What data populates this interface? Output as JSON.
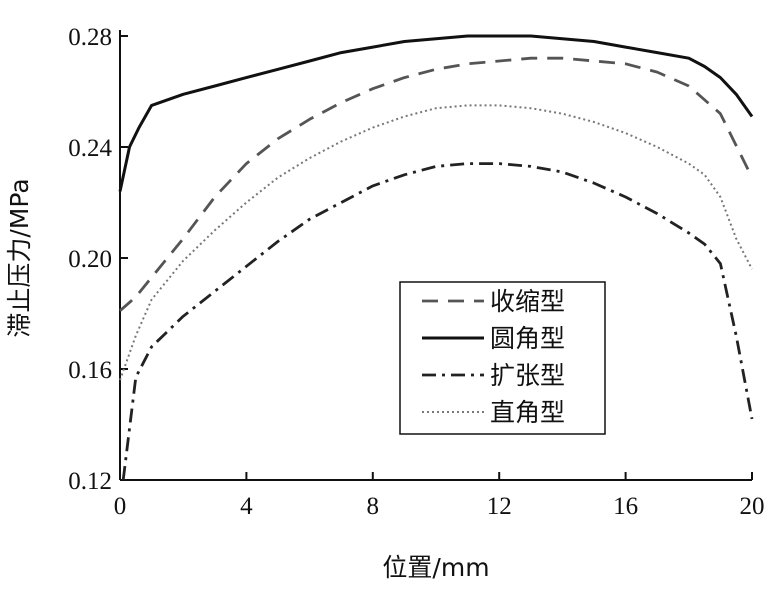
{
  "chart_data": {
    "type": "line",
    "xlabel": "位置/mm",
    "ylabel": "滞止压力/MPa",
    "xlim": [
      0,
      20
    ],
    "ylim": [
      0.12,
      0.28
    ],
    "xticks": [
      0,
      4,
      8,
      12,
      16,
      20
    ],
    "yticks": [
      0.12,
      0.16,
      0.2,
      0.24,
      0.28
    ],
    "xtick_labels": [
      "0",
      "4",
      "8",
      "12",
      "16",
      "20"
    ],
    "ytick_labels": [
      "0.12",
      "0.16",
      "0.20",
      "0.24",
      "0.28"
    ],
    "grid": false,
    "legend_position": "lower-right",
    "series": [
      {
        "name": "收缩型",
        "style": "dashed",
        "color": "#555555",
        "x": [
          0,
          0.5,
          1,
          2,
          3,
          4,
          5,
          6,
          7,
          8,
          9,
          10,
          11,
          12,
          13,
          14,
          15,
          16,
          17,
          18,
          19,
          20
        ],
        "y": [
          0.181,
          0.186,
          0.193,
          0.207,
          0.222,
          0.234,
          0.243,
          0.25,
          0.256,
          0.261,
          0.265,
          0.268,
          0.27,
          0.271,
          0.272,
          0.272,
          0.271,
          0.27,
          0.267,
          0.262,
          0.252,
          0.229
        ]
      },
      {
        "name": "圆角型",
        "style": "solid",
        "color": "#111111",
        "x": [
          0,
          0.3,
          0.6,
          1,
          2,
          3,
          4,
          5,
          6,
          7,
          8,
          9,
          10,
          11,
          12,
          13,
          14,
          15,
          16,
          17,
          18,
          18.5,
          19,
          19.5,
          20
        ],
        "y": [
          0.224,
          0.24,
          0.247,
          0.255,
          0.259,
          0.262,
          0.265,
          0.268,
          0.271,
          0.274,
          0.276,
          0.278,
          0.279,
          0.28,
          0.28,
          0.28,
          0.279,
          0.278,
          0.276,
          0.274,
          0.272,
          0.269,
          0.265,
          0.259,
          0.251
        ]
      },
      {
        "name": "扩张型",
        "style": "dashdot",
        "color": "#222222",
        "x": [
          0.1,
          0.5,
          1,
          2,
          3,
          4,
          5,
          6,
          7,
          8,
          9,
          10,
          11,
          12,
          13,
          14,
          15,
          16,
          17,
          18,
          18.5,
          19,
          19.5,
          20
        ],
        "y": [
          0.12,
          0.157,
          0.168,
          0.179,
          0.188,
          0.197,
          0.206,
          0.214,
          0.22,
          0.226,
          0.23,
          0.233,
          0.234,
          0.234,
          0.233,
          0.231,
          0.227,
          0.222,
          0.216,
          0.209,
          0.205,
          0.198,
          0.172,
          0.142
        ]
      },
      {
        "name": "直角型",
        "style": "dotted",
        "color": "#777777",
        "x": [
          0,
          0.5,
          1,
          2,
          3,
          4,
          5,
          6,
          7,
          8,
          9,
          10,
          11,
          12,
          13,
          14,
          15,
          16,
          17,
          18,
          18.5,
          19,
          19.5,
          20
        ],
        "y": [
          0.156,
          0.172,
          0.185,
          0.199,
          0.21,
          0.22,
          0.229,
          0.236,
          0.242,
          0.247,
          0.251,
          0.254,
          0.255,
          0.255,
          0.254,
          0.252,
          0.249,
          0.245,
          0.24,
          0.234,
          0.23,
          0.222,
          0.207,
          0.196
        ]
      }
    ]
  }
}
